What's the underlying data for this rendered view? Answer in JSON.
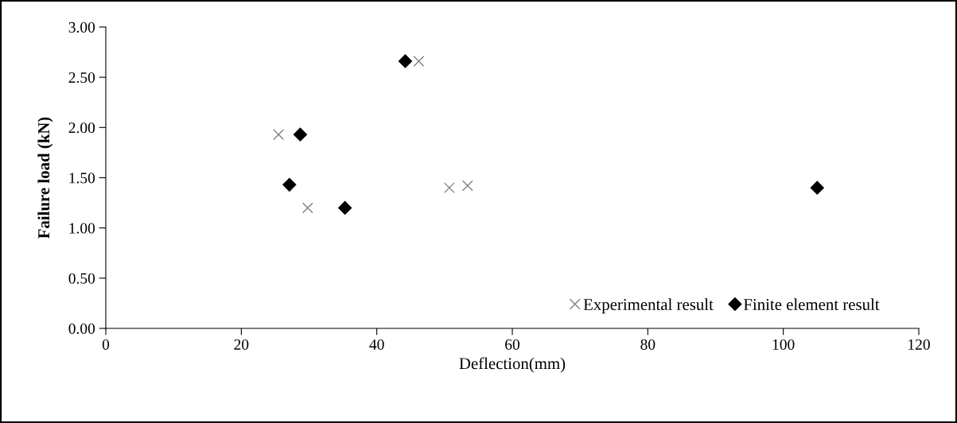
{
  "chart_data": {
    "type": "scatter",
    "xlabel": "Deflection(mm)",
    "ylabel": "Failure load (kN)",
    "series": [
      {
        "name": "Experimental result",
        "color": "#808080",
        "marker": "cross",
        "x": [
          25.5,
          29.8,
          46.2,
          50.7,
          53.4
        ],
        "values": [
          1.93,
          1.2,
          2.66,
          1.4,
          1.42
        ]
      },
      {
        "name": "Finite element result",
        "color": "#000000",
        "marker": "diamond",
        "x": [
          27.1,
          28.7,
          35.3,
          44.2,
          105
        ],
        "values": [
          1.43,
          1.93,
          1.2,
          2.66,
          1.4
        ]
      }
    ],
    "xlim": [
      0,
      120
    ],
    "xticks": [
      0,
      20,
      40,
      60,
      80,
      100,
      120
    ],
    "ylim": [
      0,
      3
    ],
    "yticks": [
      {
        "value": 0,
        "label": "0.00"
      },
      {
        "value": 0.5,
        "label": "0.50"
      },
      {
        "value": 1,
        "label": "1.00"
      },
      {
        "value": 1.5,
        "label": "1.50"
      },
      {
        "value": 2,
        "label": "2.00"
      },
      {
        "value": 2.5,
        "label": "2.50"
      },
      {
        "value": 3,
        "label": "3.00"
      }
    ],
    "grid": false,
    "legend": "bottom right"
  }
}
